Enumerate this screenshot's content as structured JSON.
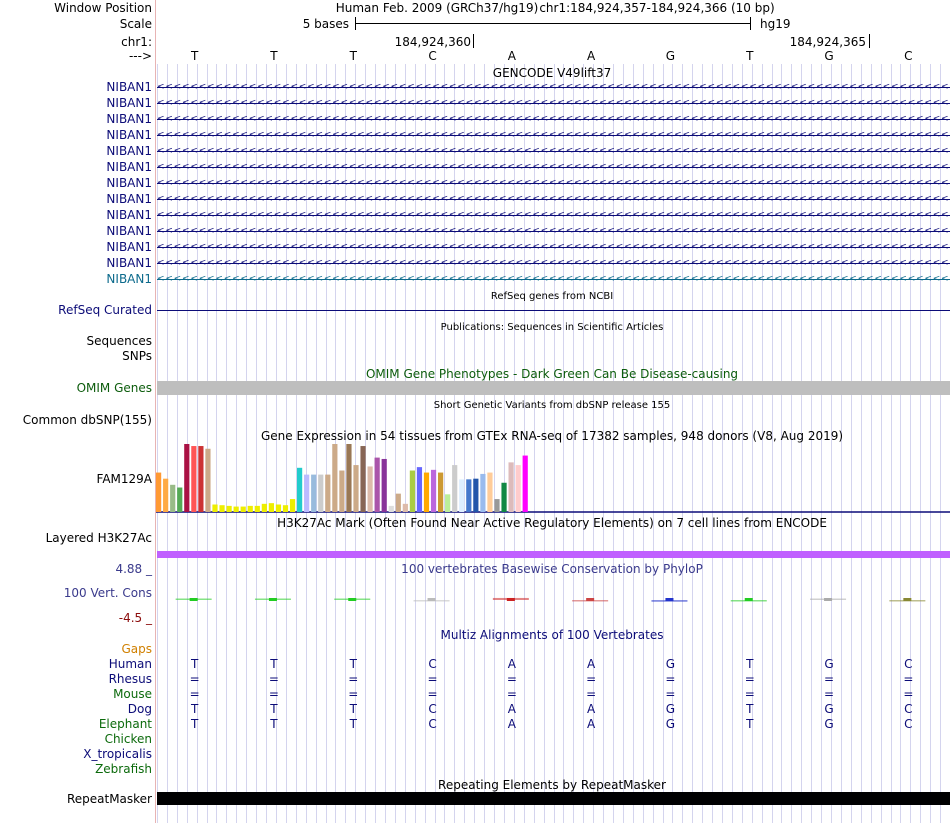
{
  "colors": {
    "gencode": "#0c0c78",
    "gencode_alt": "#0c6a8c",
    "refseq": "#0c0c78",
    "omim_label": "#0c5c0c",
    "omim_bar": "#bebebe",
    "h3k27ac": "#c060ff",
    "cons_label": "#3a3a8c",
    "cons_low": "#8c0c0c",
    "gaps": "#d08000",
    "multiz_species": "#0c0c78",
    "multiz_green": "#0c6a0c",
    "repeatmasker": "#000000",
    "grid": "#d4d4ee"
  },
  "header": {
    "window_position_label": "Window Position",
    "assembly": "Human Feb. 2009 (GRCh37/hg19)",
    "position": "chr1:184,924,357-184,924,366 (10 bp)",
    "scale_label": "Scale",
    "scale_text": "5 bases",
    "scale_db": "hg19",
    "chrom_label": "chr1:",
    "tick1": "184,924,360",
    "tick2": "184,924,365",
    "strand_label": "--->",
    "bases": [
      "T",
      "T",
      "T",
      "C",
      "A",
      "A",
      "G",
      "T",
      "G",
      "C"
    ]
  },
  "gencode": {
    "title": "GENCODE V49lift37",
    "rows": [
      "NIBAN1",
      "NIBAN1",
      "NIBAN1",
      "NIBAN1",
      "NIBAN1",
      "NIBAN1",
      "NIBAN1",
      "NIBAN1",
      "NIBAN1",
      "NIBAN1",
      "NIBAN1",
      "NIBAN1",
      "NIBAN1"
    ]
  },
  "refseq": {
    "title": "RefSeq genes from NCBI",
    "label": "RefSeq Curated"
  },
  "publications": {
    "title": "Publications: Sequences in Scientific Articles",
    "label1": "Sequences",
    "label2": "SNPs"
  },
  "omim": {
    "title": "OMIM Gene Phenotypes - Dark Green Can Be Disease-causing",
    "label": "OMIM Genes"
  },
  "dbsnp": {
    "title": "Short Genetic Variants from dbSNP release 155",
    "label": "Common dbSNP(155)"
  },
  "gtex": {
    "title": "Gene Expression in 54 tissues from GTEx RNA-seq of 17382 samples, 948 donors (V8, Aug 2019)",
    "label": "FAM129A",
    "bars": [
      {
        "v": 0.58,
        "c": "#ff9933"
      },
      {
        "v": 0.49,
        "c": "#ffaa44"
      },
      {
        "v": 0.4,
        "c": "#99bb88"
      },
      {
        "v": 0.36,
        "c": "#55aa55"
      },
      {
        "v": 1.0,
        "c": "#aa1144"
      },
      {
        "v": 0.97,
        "c": "#ff5555"
      },
      {
        "v": 0.97,
        "c": "#cc3333"
      },
      {
        "v": 0.93,
        "c": "#ccaa88"
      },
      {
        "v": 0.11,
        "c": "#eeee00"
      },
      {
        "v": 0.1,
        "c": "#eeee00"
      },
      {
        "v": 0.09,
        "c": "#eeee00"
      },
      {
        "v": 0.08,
        "c": "#eeee00"
      },
      {
        "v": 0.08,
        "c": "#eeee00"
      },
      {
        "v": 0.09,
        "c": "#eeee00"
      },
      {
        "v": 0.09,
        "c": "#eeee00"
      },
      {
        "v": 0.12,
        "c": "#eeee00"
      },
      {
        "v": 0.13,
        "c": "#eeee00"
      },
      {
        "v": 0.11,
        "c": "#eeee00"
      },
      {
        "v": 0.1,
        "c": "#eeee00"
      },
      {
        "v": 0.19,
        "c": "#eeee00"
      },
      {
        "v": 0.65,
        "c": "#22cccc"
      },
      {
        "v": 0.55,
        "c": "#bbbbff"
      },
      {
        "v": 0.55,
        "c": "#99bbdd"
      },
      {
        "v": 0.55,
        "c": "#cccccc"
      },
      {
        "v": 0.55,
        "c": "#ccaa88"
      },
      {
        "v": 1.0,
        "c": "#ccaa88"
      },
      {
        "v": 0.61,
        "c": "#ccaa88"
      },
      {
        "v": 1.0,
        "c": "#997755"
      },
      {
        "v": 0.69,
        "c": "#ccaa88"
      },
      {
        "v": 0.97,
        "c": "#886655"
      },
      {
        "v": 0.67,
        "c": "#ddbbaa"
      },
      {
        "v": 0.8,
        "c": "#aa55aa"
      },
      {
        "v": 0.78,
        "c": "#883399"
      },
      {
        "v": 0.09,
        "c": "#dddddd"
      },
      {
        "v": 0.27,
        "c": "#ccaa88"
      },
      {
        "v": 0.12,
        "c": "#ddbbaa"
      },
      {
        "v": 0.61,
        "c": "#aacc44"
      },
      {
        "v": 0.66,
        "c": "#6666ff"
      },
      {
        "v": 0.58,
        "c": "#ffaa00"
      },
      {
        "v": 0.62,
        "c": "#bb66dd"
      },
      {
        "v": 0.58,
        "c": "#cc9933"
      },
      {
        "v": 0.26,
        "c": "#bbee99"
      },
      {
        "v": 0.69,
        "c": "#cccccc"
      },
      {
        "v": 0.48,
        "c": "#ddeeff"
      },
      {
        "v": 0.48,
        "c": "#4477cc"
      },
      {
        "v": 0.49,
        "c": "#2255aa"
      },
      {
        "v": 0.56,
        "c": "#99bbee"
      },
      {
        "v": 0.58,
        "c": "#ffcc99"
      },
      {
        "v": 0.19,
        "c": "#999999"
      },
      {
        "v": 0.43,
        "c": "#118844"
      },
      {
        "v": 0.73,
        "c": "#ddbbbb"
      },
      {
        "v": 0.69,
        "c": "#ffcccc"
      },
      {
        "v": 0.83,
        "c": "#ff00ff"
      }
    ]
  },
  "h3k27ac": {
    "title": "H3K27Ac Mark (Often Found Near Active Regulatory Elements) on 7 cell lines from ENCODE",
    "label": "Layered H3K27Ac"
  },
  "conservation": {
    "title": "100 vertebrates Basewise Conservation by PhyloP",
    "label": "100 Vert. Cons",
    "max_label": "4.88 _",
    "min_label": "-4.5 _",
    "range": [
      -4.5,
      4.88
    ],
    "values": [
      0.5,
      0.5,
      0.5,
      -0.2,
      1.6,
      -0.3,
      -1.4,
      -0.5,
      0.3,
      -0.3
    ],
    "value_colors": [
      "#22cc22",
      "#22cc22",
      "#22cc22",
      "#bbbbbb",
      "#cc2222",
      "#cc4444",
      "#2233cc",
      "#22cc22",
      "#aaaaaa",
      "#888833"
    ]
  },
  "multiz": {
    "title": "Multiz Alignments of 100 Vertebrates",
    "gaps_label": "Gaps",
    "species": [
      {
        "name": "Human",
        "bases": [
          "T",
          "T",
          "T",
          "C",
          "A",
          "A",
          "G",
          "T",
          "G",
          "C"
        ]
      },
      {
        "name": "Rhesus",
        "bases": [
          "=",
          "=",
          "=",
          "=",
          "=",
          "=",
          "=",
          "=",
          "=",
          "="
        ]
      },
      {
        "name": "Mouse",
        "bases": [
          "=",
          "=",
          "=",
          "=",
          "=",
          "=",
          "=",
          "=",
          "=",
          "="
        ]
      },
      {
        "name": "Dog",
        "bases": [
          "T",
          "T",
          "T",
          "C",
          "A",
          "A",
          "G",
          "T",
          "G",
          "C"
        ]
      },
      {
        "name": "Elephant",
        "bases": [
          "T",
          "T",
          "T",
          "C",
          "A",
          "A",
          "G",
          "T",
          "G",
          "C"
        ]
      },
      {
        "name": "Chicken",
        "bases": []
      },
      {
        "name": "X_tropicalis",
        "bases": []
      },
      {
        "name": "Zebrafish",
        "bases": []
      }
    ]
  },
  "repeatmasker": {
    "title": "Repeating Elements by RepeatMasker",
    "label": "RepeatMasker"
  }
}
